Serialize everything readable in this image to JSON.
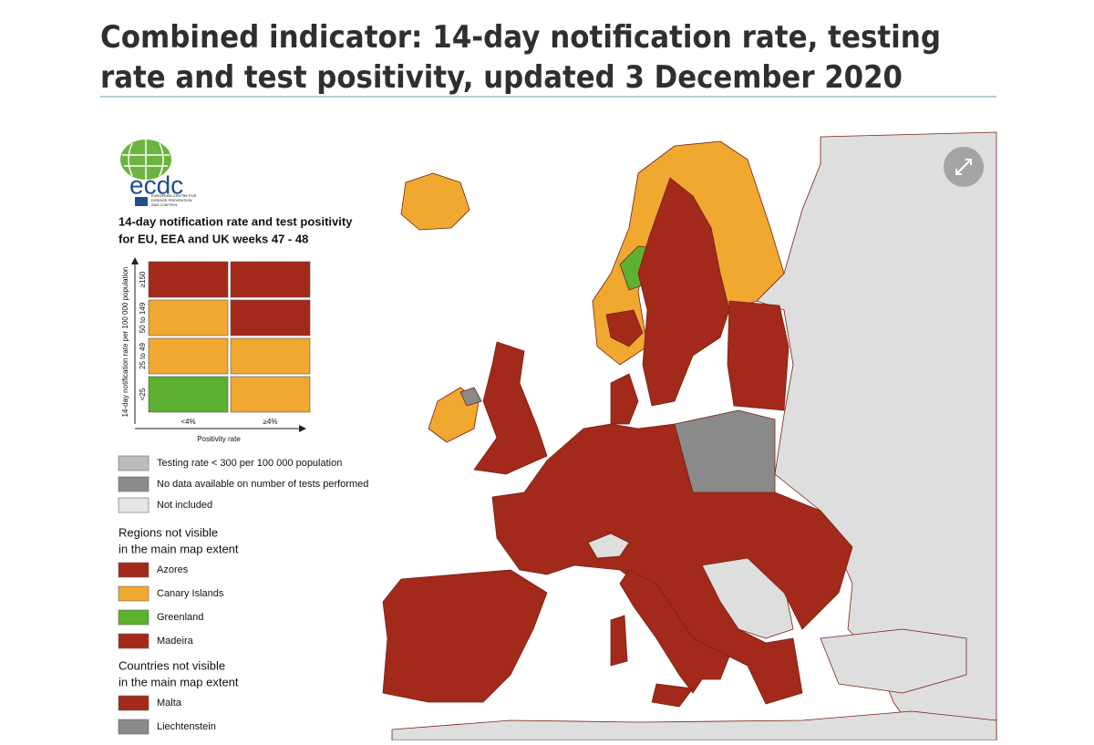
{
  "header": {
    "title": [
      "Combined indicator: 14-day notification rate, testing",
      "rate and test positivity, updated 3 December 2020"
    ]
  },
  "logo": {
    "name": "ecdc",
    "subtitle": [
      "EUROPEAN CENTRE FOR",
      "DISEASE PREVENTION",
      "AND CONTROL"
    ]
  },
  "legend": {
    "title": [
      "14-day notification rate and test positivity",
      "for EU, EEA and UK weeks 47 - 48"
    ],
    "y_label": "14-day notification rate per 100 000 population",
    "rows": [
      {
        "label": "≥150",
        "colors": [
          "#a3291b",
          "#a3291b"
        ]
      },
      {
        "label": "50 to 149",
        "colors": [
          "#f0a830",
          "#a3291b"
        ]
      },
      {
        "label": "25 to 49",
        "colors": [
          "#f0a830",
          "#f0a830"
        ]
      },
      {
        "label": "<25",
        "colors": [
          "#5cb130",
          "#f0a830"
        ]
      }
    ],
    "columns": [
      "<4%",
      "≥4%"
    ],
    "x_label": "Positivity rate",
    "items": [
      {
        "label": "Testing rate < 300 per 100 000 population",
        "color": "#bdbdbd"
      },
      {
        "label": "No data available on number of tests performed",
        "color": "#8a8a8a"
      },
      {
        "label": "Not included",
        "color": "#e6e6e6"
      }
    ],
    "regions": {
      "heading": [
        "Regions not visible",
        "in the main map extent"
      ],
      "items": [
        {
          "label": "Azores",
          "color": "#a3291b"
        },
        {
          "label": "Canary Islands",
          "color": "#f0a830"
        },
        {
          "label": "Greenland",
          "color": "#5cb130"
        },
        {
          "label": "Madeira",
          "color": "#a3291b"
        }
      ]
    },
    "countries": {
      "heading": [
        "Countries not visible",
        "in the main map extent"
      ],
      "items": [
        {
          "label": "Malta",
          "color": "#a3291b"
        },
        {
          "label": "Liechtenstein",
          "color": "#8a8a8a"
        }
      ]
    }
  }
}
